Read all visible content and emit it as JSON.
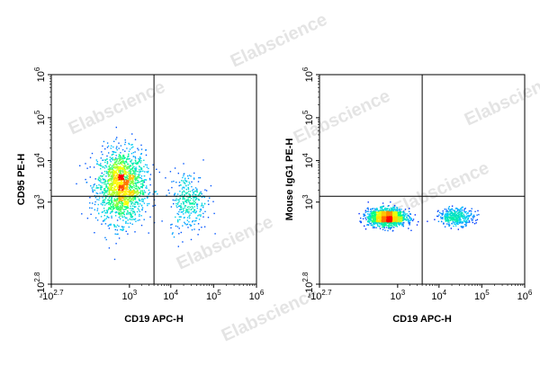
{
  "watermark": "Elabscience",
  "chart_data": [
    {
      "type": "scatter",
      "title": "",
      "xlabel": "CD19 APC-H",
      "ylabel": "CD95 PE-H",
      "x_ticks": [
        {
          "base": "-10",
          "exp": "2.7",
          "value": -501
        },
        {
          "base": "10",
          "exp": "3",
          "value": 1000
        },
        {
          "base": "10",
          "exp": "4",
          "value": 10000
        },
        {
          "base": "10",
          "exp": "5",
          "value": 100000
        },
        {
          "base": "10",
          "exp": "6",
          "value": 1000000
        }
      ],
      "y_ticks": [
        {
          "base": "-10",
          "exp": "2.8",
          "value": -631
        },
        {
          "base": "10",
          "exp": "3",
          "value": 1000
        },
        {
          "base": "10",
          "exp": "4",
          "value": 10000
        },
        {
          "base": "10",
          "exp": "5",
          "value": 100000
        },
        {
          "base": "10",
          "exp": "6",
          "value": 1000000
        }
      ],
      "xlim": [
        -501,
        1000000
      ],
      "ylim": [
        -631,
        1000000
      ],
      "x_scale": "biexponential",
      "y_scale": "biexponential",
      "gate": {
        "x": 4000,
        "y": 1400
      },
      "populations": [
        {
          "center": [
            600,
            2500
          ],
          "count": 1700,
          "x_spread": 0.28,
          "y_spread": 0.42
        },
        {
          "center": [
            25000,
            1100
          ],
          "count": 320,
          "x_spread": 0.22,
          "y_spread": 0.35
        }
      ],
      "grid": false,
      "density_colormap": [
        "#0000ff",
        "#00c8ff",
        "#00ff80",
        "#ffff00",
        "#ff0000"
      ]
    },
    {
      "type": "scatter",
      "title": "",
      "xlabel": "CD19 APC-H",
      "ylabel": "Mouse IgG1 PE-H",
      "x_ticks": [
        {
          "base": "-10",
          "exp": "2.7",
          "value": -501
        },
        {
          "base": "10",
          "exp": "3",
          "value": 1000
        },
        {
          "base": "10",
          "exp": "4",
          "value": 10000
        },
        {
          "base": "10",
          "exp": "5",
          "value": 100000
        },
        {
          "base": "10",
          "exp": "6",
          "value": 1000000
        }
      ],
      "y_ticks": [
        {
          "base": "-10",
          "exp": "2.8",
          "value": -631
        },
        {
          "base": "10",
          "exp": "3",
          "value": 1000
        },
        {
          "base": "10",
          "exp": "4",
          "value": 10000
        },
        {
          "base": "10",
          "exp": "5",
          "value": 100000
        },
        {
          "base": "10",
          "exp": "6",
          "value": 1000000
        }
      ],
      "xlim": [
        -501,
        1000000
      ],
      "ylim": [
        -631,
        1000000
      ],
      "x_scale": "biexponential",
      "y_scale": "biexponential",
      "gate": {
        "x": 4000,
        "y": 1400
      },
      "populations": [
        {
          "center": [
            500,
            400
          ],
          "count": 1500,
          "x_spread": 0.22,
          "y_spread": 0.1
        },
        {
          "center": [
            25000,
            420
          ],
          "count": 380,
          "x_spread": 0.2,
          "y_spread": 0.1
        }
      ],
      "grid": false,
      "density_colormap": [
        "#0000ff",
        "#00c8ff",
        "#00ff80",
        "#ffff00",
        "#ff0000"
      ]
    }
  ]
}
